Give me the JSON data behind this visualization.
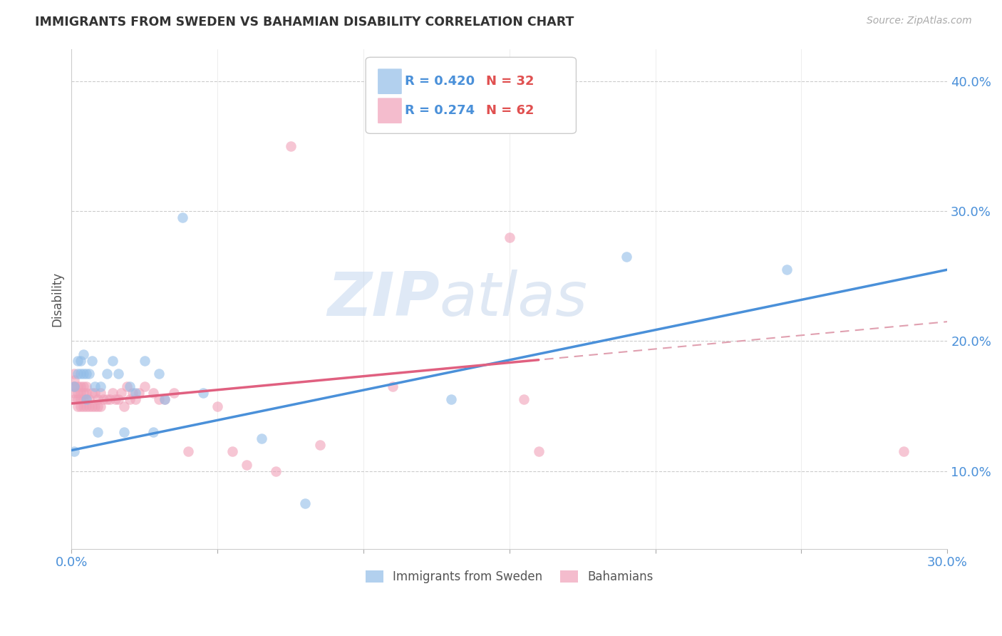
{
  "title": "IMMIGRANTS FROM SWEDEN VS BAHAMIAN DISABILITY CORRELATION CHART",
  "source_text": "Source: ZipAtlas.com",
  "ylabel": "Disability",
  "watermark_zip": "ZIP",
  "watermark_atlas": "atlas",
  "xlim": [
    0.0,
    0.3
  ],
  "ylim": [
    0.04,
    0.425
  ],
  "xticks": [
    0.0,
    0.05,
    0.1,
    0.15,
    0.2,
    0.25,
    0.3
  ],
  "xtick_labels": [
    "0.0%",
    "",
    "",
    "",
    "",
    "",
    "30.0%"
  ],
  "yticks_right": [
    0.1,
    0.2,
    0.3,
    0.4
  ],
  "ytick_labels_right": [
    "10.0%",
    "20.0%",
    "30.0%",
    "40.0%"
  ],
  "series1_color": "#92bde8",
  "series2_color": "#f0a0b8",
  "series1_label": "Immigrants from Sweden",
  "series2_label": "Bahamians",
  "series1_line_color": "#4a90d9",
  "series2_line_color": "#e06080",
  "series2_dash_color": "#e0a0b0",
  "series1_R": 0.42,
  "series1_N": 32,
  "series2_R": 0.274,
  "series2_N": 62,
  "legend_R_color": "#4a90d9",
  "legend_N_color": "#e05050",
  "background_color": "#ffffff",
  "grid_color": "#cccccc",
  "title_color": "#333333",
  "series1_x": [
    0.001,
    0.001,
    0.002,
    0.002,
    0.003,
    0.003,
    0.004,
    0.004,
    0.005,
    0.005,
    0.006,
    0.007,
    0.008,
    0.009,
    0.01,
    0.012,
    0.014,
    0.016,
    0.018,
    0.02,
    0.022,
    0.025,
    0.028,
    0.03,
    0.032,
    0.038,
    0.045,
    0.065,
    0.08,
    0.13,
    0.19,
    0.245
  ],
  "series1_y": [
    0.115,
    0.165,
    0.175,
    0.185,
    0.175,
    0.185,
    0.175,
    0.19,
    0.155,
    0.175,
    0.175,
    0.185,
    0.165,
    0.13,
    0.165,
    0.175,
    0.185,
    0.175,
    0.13,
    0.165,
    0.16,
    0.185,
    0.13,
    0.175,
    0.155,
    0.295,
    0.16,
    0.125,
    0.075,
    0.155,
    0.265,
    0.255
  ],
  "series2_x": [
    0.001,
    0.001,
    0.001,
    0.001,
    0.001,
    0.001,
    0.002,
    0.002,
    0.002,
    0.002,
    0.003,
    0.003,
    0.003,
    0.003,
    0.004,
    0.004,
    0.004,
    0.004,
    0.005,
    0.005,
    0.005,
    0.005,
    0.006,
    0.006,
    0.007,
    0.007,
    0.008,
    0.008,
    0.009,
    0.009,
    0.01,
    0.01,
    0.011,
    0.012,
    0.013,
    0.014,
    0.015,
    0.016,
    0.017,
    0.018,
    0.019,
    0.02,
    0.021,
    0.022,
    0.023,
    0.025,
    0.028,
    0.03,
    0.032,
    0.035,
    0.04,
    0.05,
    0.055,
    0.06,
    0.07,
    0.075,
    0.085,
    0.11,
    0.15,
    0.155,
    0.16,
    0.285
  ],
  "series2_y": [
    0.155,
    0.16,
    0.165,
    0.165,
    0.17,
    0.175,
    0.15,
    0.155,
    0.16,
    0.165,
    0.15,
    0.155,
    0.16,
    0.165,
    0.15,
    0.155,
    0.16,
    0.165,
    0.15,
    0.155,
    0.16,
    0.165,
    0.15,
    0.155,
    0.15,
    0.16,
    0.15,
    0.16,
    0.15,
    0.155,
    0.15,
    0.16,
    0.155,
    0.155,
    0.155,
    0.16,
    0.155,
    0.155,
    0.16,
    0.15,
    0.165,
    0.155,
    0.16,
    0.155,
    0.16,
    0.165,
    0.16,
    0.155,
    0.155,
    0.16,
    0.115,
    0.15,
    0.115,
    0.105,
    0.1,
    0.35,
    0.12,
    0.165,
    0.28,
    0.155,
    0.115,
    0.115
  ],
  "line1_x0": 0.0,
  "line1_y0": 0.116,
  "line1_x1": 0.3,
  "line1_y1": 0.255,
  "line2_x0": 0.0,
  "line2_y0": 0.152,
  "line2_x1": 0.3,
  "line2_y1": 0.215
}
